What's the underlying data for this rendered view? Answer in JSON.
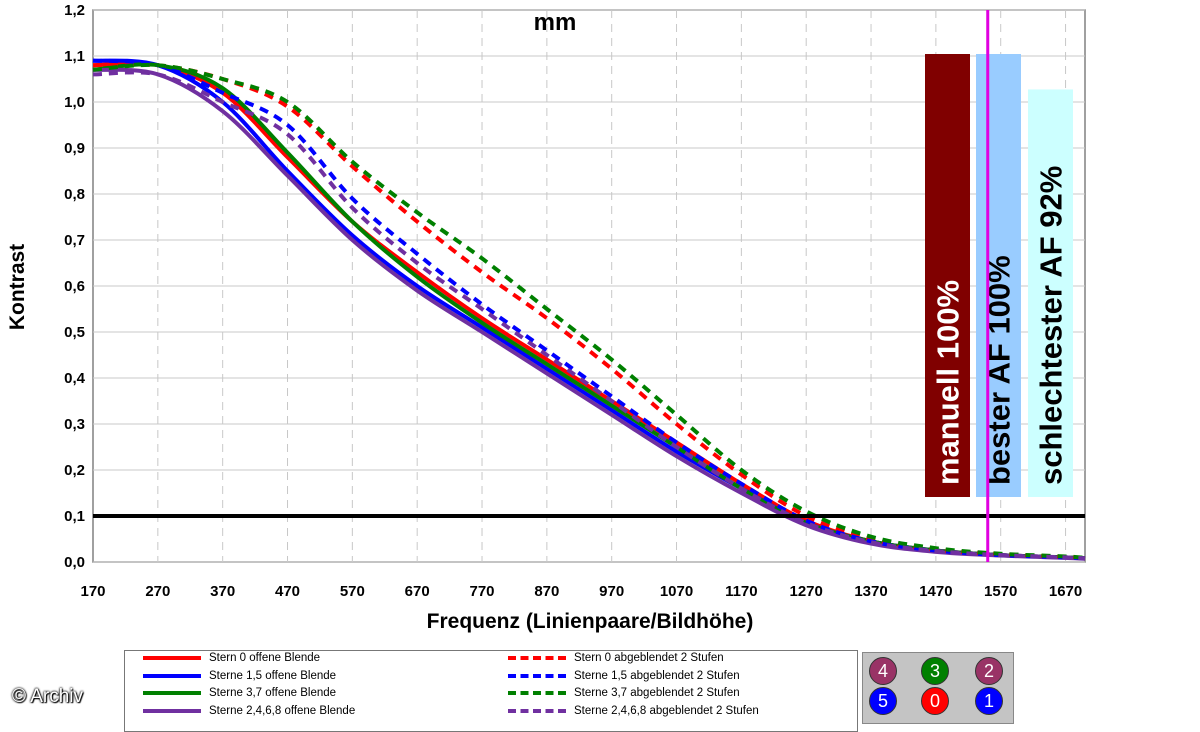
{
  "chart_data": {
    "type": "line",
    "title": "mm",
    "xlabel": "Frequenz (Linienpaare/Bildhöhe)",
    "ylabel": "Kontrast",
    "xlim": [
      170,
      1700
    ],
    "ylim": [
      0,
      1.2
    ],
    "x_ticks": [
      "170",
      "270",
      "370",
      "470",
      "570",
      "670",
      "770",
      "870",
      "970",
      "1070",
      "1170",
      "1270",
      "1370",
      "1470",
      "1570",
      "1670"
    ],
    "y_ticks": [
      "0,0",
      "0,1",
      "0,2",
      "0,3",
      "0,4",
      "0,5",
      "0,6",
      "0,7",
      "0,8",
      "0,9",
      "1,0",
      "1,1",
      "1,2"
    ],
    "threshold_line": 0.1,
    "vertical_marker_x": 1550,
    "x": [
      170,
      270,
      370,
      470,
      570,
      670,
      770,
      870,
      970,
      1070,
      1170,
      1270,
      1370,
      1470,
      1570,
      1670,
      1700
    ],
    "series": [
      {
        "name": "Stern 0 offene Blende",
        "color": "#ff0000",
        "dash": false,
        "values": [
          1.08,
          1.08,
          1.02,
          0.88,
          0.74,
          0.63,
          0.53,
          0.44,
          0.35,
          0.26,
          0.17,
          0.09,
          0.045,
          0.025,
          0.015,
          0.01,
          0.008
        ]
      },
      {
        "name": "Sterne 1,5 offene Blende",
        "color": "#0000ff",
        "dash": false,
        "values": [
          1.09,
          1.08,
          1.0,
          0.85,
          0.71,
          0.6,
          0.51,
          0.42,
          0.33,
          0.24,
          0.16,
          0.085,
          0.045,
          0.025,
          0.015,
          0.01,
          0.008
        ]
      },
      {
        "name": "Sterne 3,7 offene Blende",
        "color": "#008000",
        "dash": false,
        "values": [
          1.07,
          1.08,
          1.03,
          0.89,
          0.74,
          0.62,
          0.52,
          0.43,
          0.34,
          0.25,
          0.16,
          0.085,
          0.045,
          0.025,
          0.015,
          0.01,
          0.008
        ]
      },
      {
        "name": "Sterne 2,4,6,8 offene Blende",
        "color": "#7030a0",
        "dash": false,
        "values": [
          1.07,
          1.06,
          0.98,
          0.84,
          0.7,
          0.59,
          0.5,
          0.41,
          0.32,
          0.23,
          0.15,
          0.08,
          0.04,
          0.022,
          0.014,
          0.009,
          0.007
        ]
      },
      {
        "name": "Stern 0 abgeblendet 2 Stufen",
        "color": "#ff0000",
        "dash": true,
        "values": [
          1.08,
          1.08,
          1.05,
          0.99,
          0.86,
          0.74,
          0.63,
          0.53,
          0.42,
          0.3,
          0.19,
          0.1,
          0.05,
          0.027,
          0.017,
          0.011,
          0.009
        ]
      },
      {
        "name": "Sterne 1,5 abgeblendet 2 Stufen",
        "color": "#0000ff",
        "dash": true,
        "values": [
          1.09,
          1.08,
          1.02,
          0.95,
          0.79,
          0.67,
          0.56,
          0.46,
          0.36,
          0.26,
          0.17,
          0.09,
          0.045,
          0.025,
          0.015,
          0.01,
          0.008
        ]
      },
      {
        "name": "Sterne 3,7 abgeblendet 2 Stufen",
        "color": "#008000",
        "dash": true,
        "values": [
          1.07,
          1.08,
          1.05,
          1.0,
          0.87,
          0.76,
          0.66,
          0.55,
          0.44,
          0.32,
          0.2,
          0.11,
          0.055,
          0.03,
          0.018,
          0.012,
          0.009
        ]
      },
      {
        "name": "Sterne 2,4,6,8 abgeblendet 2 Stufen",
        "color": "#7030a0",
        "dash": true,
        "values": [
          1.06,
          1.06,
          1.0,
          0.93,
          0.77,
          0.65,
          0.55,
          0.45,
          0.35,
          0.25,
          0.16,
          0.085,
          0.043,
          0.024,
          0.015,
          0.01,
          0.008
        ]
      }
    ],
    "bars": [
      {
        "label": "manuell 100%",
        "value": 100,
        "color": "#800000",
        "text_color": "#ffffff"
      },
      {
        "label": "bester AF 100%",
        "value": 100,
        "color": "#99ccff",
        "text_color": "#000000"
      },
      {
        "label": "schlechtester AF 92%",
        "value": 92,
        "color": "#ccffff",
        "text_color": "#000000"
      }
    ],
    "grid": true
  },
  "legend": {
    "items": [
      {
        "label": "Stern 0 offene Blende",
        "color": "#ff0000",
        "dash": false
      },
      {
        "label": "Sterne 1,5 offene Blende",
        "color": "#0000ff",
        "dash": false
      },
      {
        "label": "Sterne 3,7 offene Blende",
        "color": "#008000",
        "dash": false
      },
      {
        "label": "Sterne 2,4,6,8 offene Blende",
        "color": "#7030a0",
        "dash": false
      },
      {
        "label": "Stern 0 abgeblendet 2 Stufen",
        "color": "#ff0000",
        "dash": true
      },
      {
        "label": "Sterne 1,5 abgeblendet 2 Stufen",
        "color": "#0000ff",
        "dash": true
      },
      {
        "label": "Sterne 3,7 abgeblendet 2 Stufen",
        "color": "#008000",
        "dash": true
      },
      {
        "label": "Sterne 2,4,6,8 abgeblendet 2 Stufen",
        "color": "#7030a0",
        "dash": true
      }
    ]
  },
  "markers": [
    {
      "label": "4",
      "color": "#993366"
    },
    {
      "label": "3",
      "color": "#008000"
    },
    {
      "label": "2",
      "color": "#993366"
    },
    {
      "label": "5",
      "color": "#0000ff"
    },
    {
      "label": "0",
      "color": "#ff0000"
    },
    {
      "label": "1",
      "color": "#0000ff"
    }
  ],
  "watermark": "© Archiv"
}
